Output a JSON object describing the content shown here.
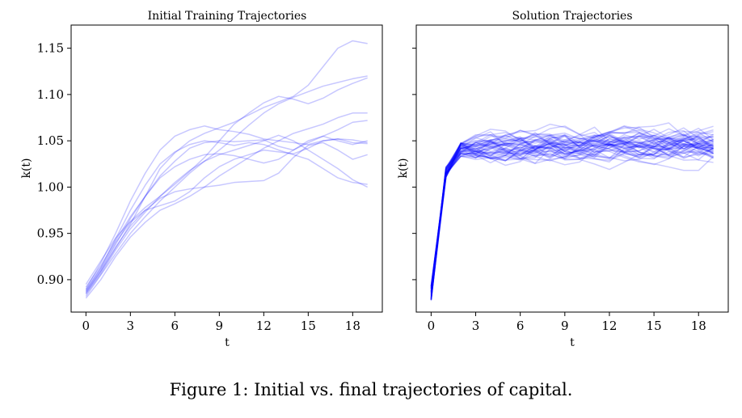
{
  "figure": {
    "caption": "Figure 1: Initial vs. final trajectories of capital."
  },
  "colors": {
    "line": "#0000ff",
    "axis": "#000000"
  },
  "chart_data": [
    {
      "type": "line",
      "title": "Initial Training Trajectories",
      "xlabel": "t",
      "ylabel": "k(t)",
      "xlim": [
        -1,
        20
      ],
      "ylim": [
        0.865,
        1.175
      ],
      "xticks": [
        0,
        3,
        6,
        9,
        12,
        15,
        18
      ],
      "yticks": [
        0.9,
        0.95,
        1.0,
        1.05,
        1.1,
        1.15
      ],
      "ytick_labels": [
        "0.90",
        "0.95",
        "1.00",
        "1.05",
        "1.10",
        "1.15"
      ],
      "grid": false,
      "series_color": "#0000ff",
      "series_alpha": 0.22,
      "x": [
        0,
        1,
        2,
        3,
        4,
        5,
        6,
        7,
        8,
        9,
        10,
        11,
        12,
        13,
        14,
        15,
        16,
        17,
        18,
        19
      ],
      "series": [
        {
          "values": [
            0.885,
            0.908,
            0.934,
            0.96,
            0.99,
            1.02,
            1.037,
            1.05,
            1.058,
            1.064,
            1.07,
            1.078,
            1.086,
            1.092,
            1.098,
            1.11,
            1.13,
            1.15,
            1.158,
            1.155
          ]
        },
        {
          "values": [
            0.89,
            0.918,
            0.95,
            0.985,
            1.015,
            1.04,
            1.055,
            1.062,
            1.066,
            1.062,
            1.06,
            1.057,
            1.052,
            1.05,
            1.048,
            1.046,
            1.05,
            1.052,
            1.051,
            1.048
          ]
        },
        {
          "values": [
            0.882,
            0.905,
            0.928,
            0.95,
            0.968,
            0.985,
            1.0,
            1.015,
            1.028,
            1.04,
            1.053,
            1.067,
            1.08,
            1.09,
            1.097,
            1.103,
            1.109,
            1.113,
            1.117,
            1.12
          ]
        },
        {
          "values": [
            0.895,
            0.92,
            0.945,
            0.963,
            0.978,
            0.99,
            1.003,
            1.017,
            1.032,
            1.05,
            1.068,
            1.08,
            1.091,
            1.098,
            1.095,
            1.09,
            1.096,
            1.105,
            1.112,
            1.118
          ]
        },
        {
          "values": [
            0.887,
            0.91,
            0.938,
            0.966,
            0.99,
            1.012,
            1.028,
            1.042,
            1.048,
            1.05,
            1.049,
            1.05,
            1.051,
            1.044,
            1.04,
            1.048,
            1.055,
            1.062,
            1.07,
            1.072
          ]
        },
        {
          "values": [
            0.88,
            0.9,
            0.925,
            0.946,
            0.962,
            0.975,
            0.982,
            0.99,
            1.0,
            1.012,
            1.022,
            1.032,
            1.042,
            1.05,
            1.058,
            1.063,
            1.068,
            1.075,
            1.08,
            1.08
          ]
        },
        {
          "values": [
            0.888,
            0.912,
            0.94,
            0.962,
            0.975,
            0.98,
            0.985,
            0.995,
            1.01,
            1.022,
            1.03,
            1.035,
            1.04,
            1.038,
            1.036,
            1.042,
            1.05,
            1.052,
            1.048,
            1.047
          ]
        },
        {
          "values": [
            0.892,
            0.915,
            0.942,
            0.968,
            0.99,
            1.01,
            1.022,
            1.03,
            1.035,
            1.036,
            1.034,
            1.03,
            1.026,
            1.03,
            1.04,
            1.05,
            1.055,
            1.05,
            1.046,
            1.05
          ]
        },
        {
          "values": [
            0.884,
            0.906,
            0.932,
            0.955,
            0.973,
            0.99,
            1.005,
            1.018,
            1.028,
            1.035,
            1.04,
            1.045,
            1.05,
            1.056,
            1.05,
            1.04,
            1.03,
            1.02,
            1.008,
            1.0
          ]
        },
        {
          "values": [
            0.889,
            0.913,
            0.944,
            0.975,
            1.002,
            1.025,
            1.038,
            1.046,
            1.05,
            1.048,
            1.045,
            1.048,
            1.046,
            1.04,
            1.035,
            1.03,
            1.02,
            1.01,
            1.005,
            1.003
          ]
        },
        {
          "values": [
            0.886,
            0.909,
            0.935,
            0.958,
            0.975,
            0.988,
            0.995,
            0.998,
            1.0,
            1.002,
            1.005,
            1.006,
            1.007,
            1.015,
            1.032,
            1.045,
            1.048,
            1.04,
            1.03,
            1.035
          ]
        }
      ]
    },
    {
      "type": "line",
      "title": "Solution Trajectories",
      "xlabel": "t",
      "ylabel": "k(t)",
      "xlim": [
        -1,
        20
      ],
      "ylim": [
        0.865,
        1.175
      ],
      "xticks": [
        0,
        3,
        6,
        9,
        12,
        15,
        18
      ],
      "yticks": [
        0.9,
        0.95,
        1.0,
        1.05,
        1.1,
        1.15
      ],
      "show_ytick_labels": false,
      "grid": false,
      "series_color": "#0000ff",
      "series_alpha": 0.2,
      "n_series": 48,
      "x": [
        0,
        1,
        2,
        3,
        4,
        5,
        6,
        7,
        8,
        9,
        10,
        11,
        12,
        13,
        14,
        15,
        16,
        17,
        18,
        19
      ],
      "start_range": [
        0.877,
        0.895
      ],
      "t1_range": [
        1.01,
        1.022
      ],
      "steady_mean": 1.045,
      "band": [
        1.018,
        1.092
      ]
    }
  ]
}
